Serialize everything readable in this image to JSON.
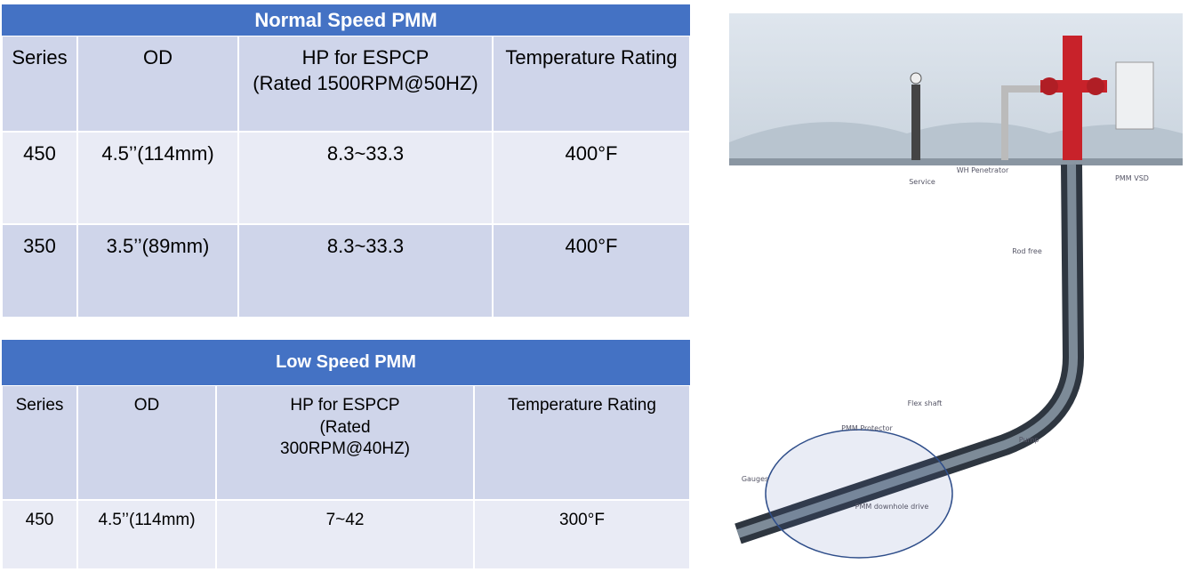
{
  "tables": [
    {
      "title": "Normal Speed PMM",
      "header": [
        "Series",
        "OD",
        "HP for ESPCP\n(Rated 1500RPM@50HZ)",
        "Temperature Rating"
      ],
      "rows": [
        [
          "450",
          "4.5’’(114mm)",
          "8.3~33.3",
          "400°F"
        ],
        [
          "350",
          "3.5’’(89mm)",
          "8.3~33.3",
          "400°F"
        ]
      ]
    },
    {
      "title": "Low Speed PMM",
      "header": [
        "Series",
        "OD",
        "HP for ESPCP\n(Rated\n300RPM@40HZ)",
        "Temperature Rating"
      ],
      "rows": [
        [
          "450",
          "4.5’’(114mm)",
          "7~42",
          "300°F"
        ]
      ]
    }
  ],
  "diagram": {
    "labels": [
      "Service",
      "WH Penetrator",
      "PMM VSD",
      "Rod free",
      "Flex shaft",
      "PMM Protector",
      "Pump",
      "Gauges",
      "PMM downhole drive"
    ]
  }
}
